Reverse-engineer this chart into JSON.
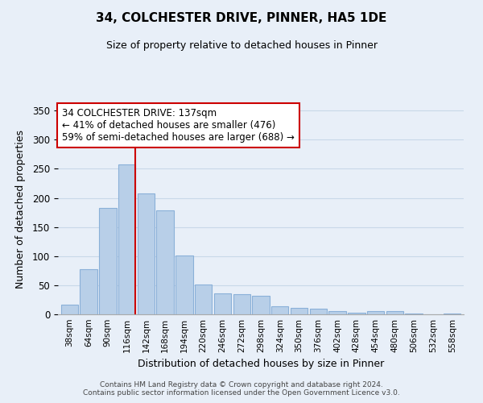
{
  "title": "34, COLCHESTER DRIVE, PINNER, HA5 1DE",
  "subtitle": "Size of property relative to detached houses in Pinner",
  "xlabel": "Distribution of detached houses by size in Pinner",
  "ylabel": "Number of detached properties",
  "bar_labels": [
    "38sqm",
    "64sqm",
    "90sqm",
    "116sqm",
    "142sqm",
    "168sqm",
    "194sqm",
    "220sqm",
    "246sqm",
    "272sqm",
    "298sqm",
    "324sqm",
    "350sqm",
    "376sqm",
    "402sqm",
    "428sqm",
    "454sqm",
    "480sqm",
    "506sqm",
    "532sqm",
    "558sqm"
  ],
  "bar_values": [
    17,
    77,
    183,
    258,
    208,
    178,
    101,
    51,
    36,
    35,
    32,
    14,
    11,
    10,
    5,
    3,
    6,
    5,
    2,
    0,
    2
  ],
  "bar_color": "#b8cfe8",
  "bar_edge_color": "#8ab0d8",
  "grid_color": "#c8d8e8",
  "background_color": "#e8eff8",
  "vline_color": "#cc0000",
  "vline_x": 3.42,
  "annotation_title": "34 COLCHESTER DRIVE: 137sqm",
  "annotation_line1": "← 41% of detached houses are smaller (476)",
  "annotation_line2": "59% of semi-detached houses are larger (688) →",
  "annotation_box_color": "#ffffff",
  "annotation_box_edge": "#cc0000",
  "ylim": [
    0,
    360
  ],
  "yticks": [
    0,
    50,
    100,
    150,
    200,
    250,
    300,
    350
  ],
  "footer1": "Contains HM Land Registry data © Crown copyright and database right 2024.",
  "footer2": "Contains public sector information licensed under the Open Government Licence v3.0."
}
